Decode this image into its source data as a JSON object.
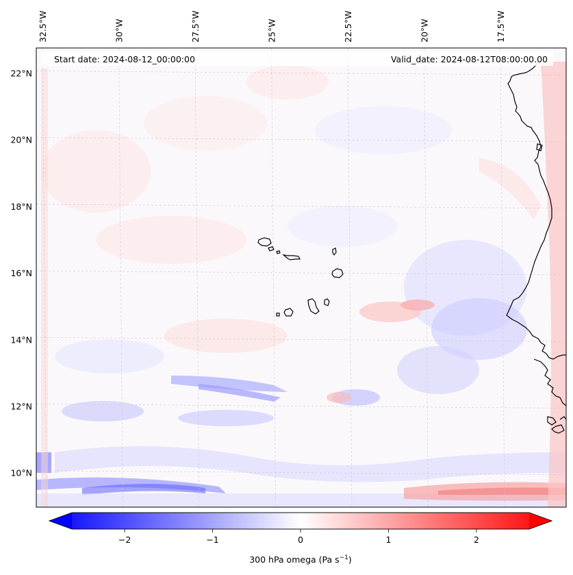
{
  "map": {
    "projection": "regional lat-lon map (Cabo Verde / West Africa)",
    "extent": {
      "lon_min": -32.8,
      "lon_max": -15.6,
      "lat_min": 8.9,
      "lat_max": 22.8
    },
    "start_date": "Start date: 2024-08-12_00:00:00",
    "valid_date": "Valid_date: 2024-08-12T08:00:00.00",
    "lon_ticks": [
      {
        "value": -32.5,
        "label": "32.5°W"
      },
      {
        "value": -30,
        "label": "30°W"
      },
      {
        "value": -27.5,
        "label": "27.5°W"
      },
      {
        "value": -25,
        "label": "25°W"
      },
      {
        "value": -22.5,
        "label": "22.5°W"
      },
      {
        "value": -20,
        "label": "20°W"
      },
      {
        "value": -17.5,
        "label": "17.5°W"
      }
    ],
    "lat_ticks": [
      {
        "value": 22,
        "label": "22°N"
      },
      {
        "value": 20,
        "label": "20°N"
      },
      {
        "value": 18,
        "label": "18°N"
      },
      {
        "value": 16,
        "label": "16°N"
      },
      {
        "value": 14,
        "label": "14°N"
      },
      {
        "value": 12,
        "label": "12°N"
      },
      {
        "value": 10,
        "label": "10°N"
      }
    ],
    "field": "300 hPa omega",
    "features": [
      "West African coastline",
      "Cabo Verde islands"
    ]
  },
  "colorbar": {
    "vmin": -2.6,
    "vmax": 2.6,
    "ticks": [
      {
        "value": -2,
        "label": "−2"
      },
      {
        "value": -1,
        "label": "−1"
      },
      {
        "value": 0,
        "label": "0"
      },
      {
        "value": 1,
        "label": "1"
      },
      {
        "value": 2,
        "label": "2"
      }
    ],
    "label_main": "300 hPa omega (Pa s",
    "label_sup": "−1",
    "label_close": ")",
    "colormap": "bwr",
    "color_low": "#0000ff",
    "color_mid": "#ffffff",
    "color_high": "#ff0000",
    "extend": "both"
  }
}
